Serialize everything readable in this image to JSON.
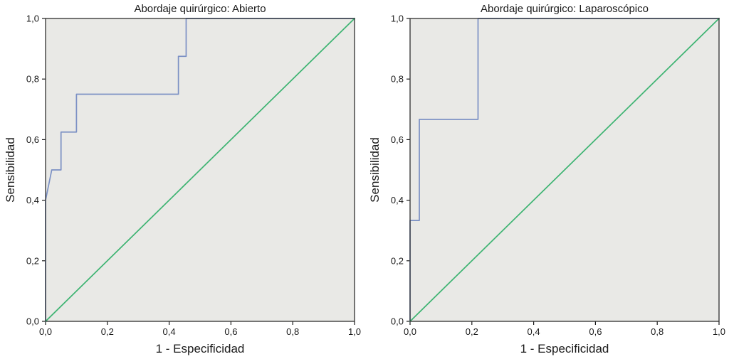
{
  "page": {
    "background": "#ffffff"
  },
  "chart_data": [
    {
      "type": "line",
      "title": "Abordaje quirúrgico: Abierto",
      "xlabel": "1 - Especificidad",
      "ylabel": "Sensibilidad",
      "xlim": [
        0,
        1
      ],
      "ylim": [
        0,
        1
      ],
      "xticks": [
        0,
        0.2,
        0.4,
        0.6,
        0.8,
        1.0
      ],
      "yticks": [
        0,
        0.2,
        0.4,
        0.6,
        0.8,
        1.0
      ],
      "xtick_labels": [
        "0,0",
        "0,2",
        "0,4",
        "0,6",
        "0,8",
        "1,0"
      ],
      "ytick_labels": [
        "0,0",
        "0,2",
        "0,4",
        "0,6",
        "0,8",
        "1,0"
      ],
      "plot_bg": "#e9e9e6",
      "border_color": "#2e2e2e",
      "grid": false,
      "legend": "none",
      "series": [
        {
          "name": "ROC curve",
          "color": "#7b90c4",
          "points": [
            [
              0,
              0
            ],
            [
              0,
              0.4
            ],
            [
              0.02,
              0.5
            ],
            [
              0.05,
              0.5
            ],
            [
              0.05,
              0.625
            ],
            [
              0.1,
              0.625
            ],
            [
              0.1,
              0.75
            ],
            [
              0.43,
              0.75
            ],
            [
              0.43,
              0.875
            ],
            [
              0.455,
              0.875
            ],
            [
              0.455,
              1.0
            ],
            [
              1,
              1
            ]
          ]
        },
        {
          "name": "Reference line",
          "color": "#3cb371",
          "points": [
            [
              0,
              0
            ],
            [
              1,
              1
            ]
          ]
        }
      ]
    },
    {
      "type": "line",
      "title": "Abordaje quirúrgico: Laparoscópico",
      "xlabel": "1 - Especificidad",
      "ylabel": "Sensibilidad",
      "xlim": [
        0,
        1
      ],
      "ylim": [
        0,
        1
      ],
      "xticks": [
        0,
        0.2,
        0.4,
        0.6,
        0.8,
        1.0
      ],
      "yticks": [
        0,
        0.2,
        0.4,
        0.6,
        0.8,
        1.0
      ],
      "xtick_labels": [
        "0,0",
        "0,2",
        "0,4",
        "0,6",
        "0,8",
        "1,0"
      ],
      "ytick_labels": [
        "0,0",
        "0,2",
        "0,4",
        "0,6",
        "0,8",
        "1,0"
      ],
      "plot_bg": "#e9e9e6",
      "border_color": "#2e2e2e",
      "grid": false,
      "legend": "none",
      "series": [
        {
          "name": "ROC curve",
          "color": "#7b90c4",
          "points": [
            [
              0,
              0
            ],
            [
              0,
              0.333
            ],
            [
              0.03,
              0.333
            ],
            [
              0.03,
              0.667
            ],
            [
              0.22,
              0.667
            ],
            [
              0.22,
              1.0
            ],
            [
              1,
              1
            ]
          ]
        },
        {
          "name": "Reference line",
          "color": "#3cb371",
          "points": [
            [
              0,
              0
            ],
            [
              1,
              1
            ]
          ]
        }
      ]
    }
  ]
}
